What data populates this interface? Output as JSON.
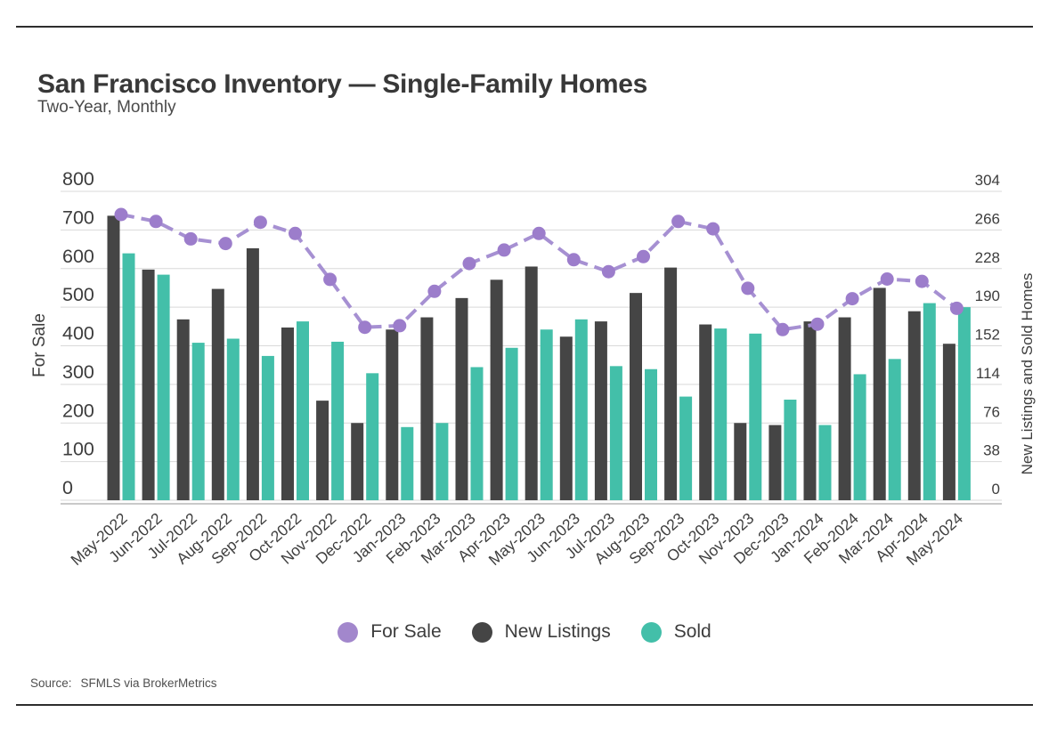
{
  "page": {
    "title": "San Francisco Inventory — Single-Family Homes",
    "subtitle": "Two-Year, Monthly",
    "source_label": "Source:",
    "source_text": "SFMLS via BrokerMetrics"
  },
  "legend": [
    {
      "label": "For Sale",
      "color": "#a287cc"
    },
    {
      "label": "New Listings",
      "color": "#454545"
    },
    {
      "label": "Sold",
      "color": "#43bfa9"
    }
  ],
  "chart_data": {
    "type": "bar",
    "subtype": "grouped-bars-with-line",
    "grid": true,
    "legend_position": "bottom",
    "categories": [
      "May-2022",
      "Jun-2022",
      "Jul-2022",
      "Aug-2022",
      "Sep-2022",
      "Oct-2022",
      "Nov-2022",
      "Dec-2022",
      "Jan-2023",
      "Feb-2023",
      "Mar-2023",
      "Apr-2023",
      "May-2023",
      "Jun-2023",
      "Jul-2023",
      "Aug-2023",
      "Sep-2023",
      "Oct-2023",
      "Nov-2023",
      "Dec-2023",
      "Jan-2024",
      "Feb-2024",
      "Mar-2024",
      "Apr-2024",
      "May-2024"
    ],
    "series": [
      {
        "name": "For Sale",
        "type": "line",
        "axis": "left",
        "line_style": "dashed",
        "color": "#a690d2",
        "marker_color": "#9c7dcb",
        "values": [
          740,
          722,
          677,
          665,
          720,
          691,
          572,
          448,
          452,
          541,
          613,
          648,
          691,
          623,
          592,
          631,
          722,
          703,
          549,
          442,
          456,
          522,
          573,
          567,
          497
        ]
      },
      {
        "name": "New Listings",
        "type": "bar",
        "axis": "right",
        "color": "#454545",
        "values": [
          280,
          227,
          178,
          208,
          248,
          170,
          98,
          76,
          168,
          180,
          199,
          217,
          230,
          161,
          176,
          204,
          229,
          173,
          76,
          74,
          176,
          180,
          209,
          186,
          154
        ]
      },
      {
        "name": "Sold",
        "type": "bar",
        "axis": "right",
        "color": "#43bfa9",
        "values": [
          243,
          222,
          155,
          159,
          142,
          176,
          156,
          125,
          72,
          76,
          131,
          150,
          168,
          178,
          132,
          129,
          102,
          169,
          164,
          99,
          74,
          124,
          139,
          194,
          190
        ]
      }
    ],
    "left_axis": {
      "title": "For Sale",
      "min": 0,
      "max": 800,
      "ticks": [
        0,
        100,
        200,
        300,
        400,
        500,
        600,
        700,
        800
      ]
    },
    "right_axis": {
      "title": "New Listings and Sold Homes",
      "min": 0,
      "max": 304,
      "ticks": [
        0,
        38,
        76,
        114,
        152,
        190,
        228,
        266,
        304
      ]
    }
  }
}
